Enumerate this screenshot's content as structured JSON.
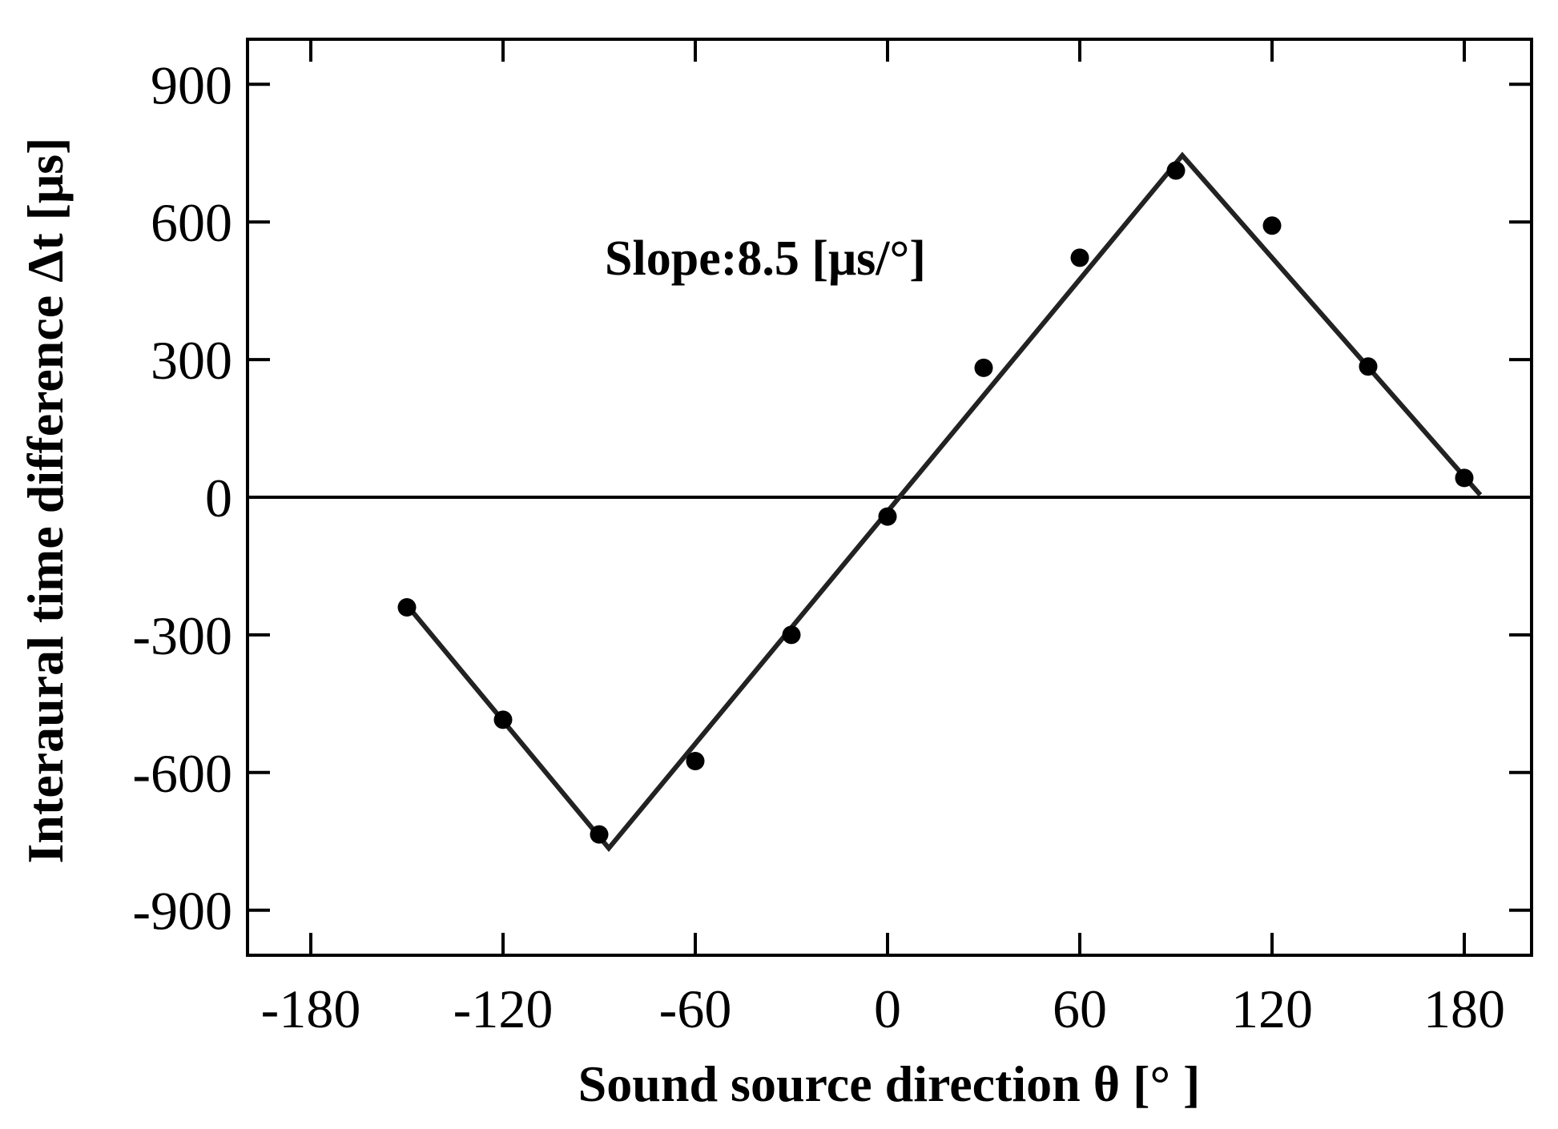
{
  "chart_data": {
    "type": "scatter",
    "xlabel": "Sound source direction θ [°  ]",
    "ylabel": "Interaural time difference Δt [μs]",
    "xlim": [
      -200,
      200
    ],
    "ylim": [
      -990,
      1000
    ],
    "xticks": [
      -180,
      -120,
      -60,
      0,
      60,
      120,
      180
    ],
    "yticks": [
      -900,
      -600,
      -300,
      0,
      300,
      600,
      900
    ],
    "xtick_labels": [
      "-180",
      "-120",
      "-60",
      "0",
      "60",
      "120",
      "180"
    ],
    "ytick_labels": [
      "-900",
      "-600",
      "-300",
      "0",
      "300",
      "600",
      "900"
    ],
    "grid": false,
    "zero_line": true,
    "annotation": "Slope:8.5 [μs/°]",
    "series": [
      {
        "kind": "points",
        "x": [
          -150,
          -120,
          -90,
          -60,
          -30,
          0,
          30,
          60,
          90,
          120,
          150,
          180
        ],
        "y": [
          -240,
          -485,
          -735,
          -575,
          -300,
          -42,
          282,
          522,
          712,
          592,
          285,
          42
        ]
      },
      {
        "kind": "fit-line",
        "x": [
          -150,
          -87,
          92,
          185
        ],
        "y": [
          -235,
          -765,
          745,
          5
        ]
      }
    ]
  }
}
